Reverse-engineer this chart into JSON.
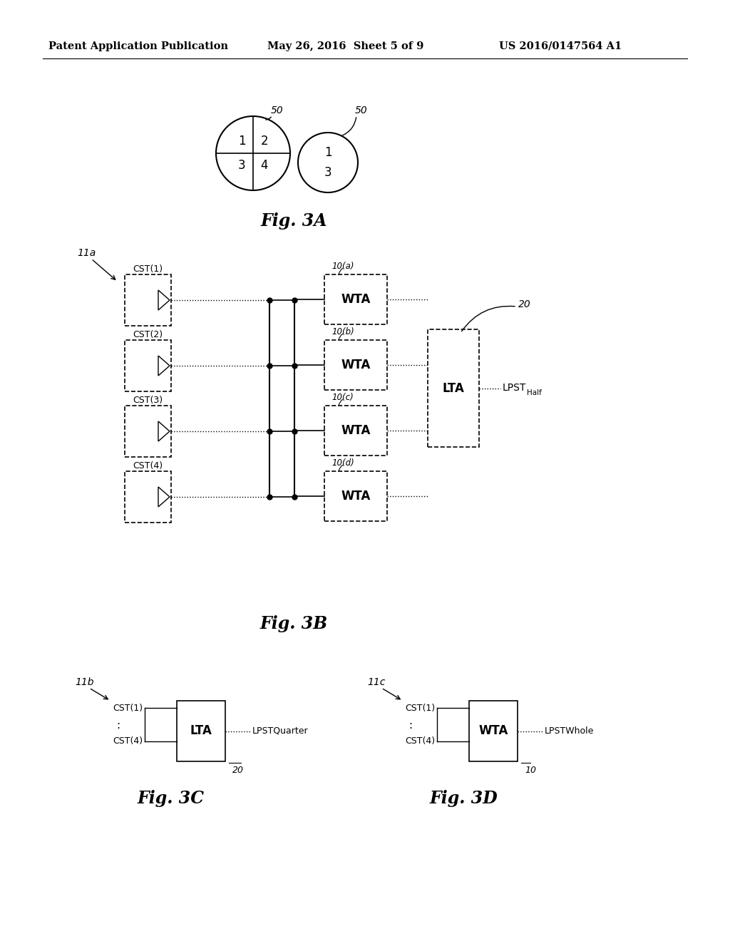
{
  "background_color": "#ffffff",
  "header_left": "Patent Application Publication",
  "header_center": "May 26, 2016  Sheet 5 of 9",
  "header_right": "US 2016/0147564 A1",
  "fig3A_label": "Fig. 3A",
  "fig3B_label": "Fig. 3B",
  "fig3C_label": "Fig. 3C",
  "fig3D_label": "Fig. 3D",
  "circle1_label": "50",
  "circle2_label": "50",
  "ref_11a": "11a",
  "ref_11b": "11b",
  "ref_11c": "11c",
  "ref_20a": "20",
  "ref_20b": "20",
  "ref_10": "10",
  "wta_sublabels": [
    "10(a)",
    "10(b)",
    "10(c)",
    "10(d)"
  ],
  "cst_labels": [
    "CST(1)",
    "CST(2)",
    "CST(3)",
    "CST(4)"
  ],
  "fig3c_cst_top": "CST(1)",
  "fig3c_cst_bot": "CST(4)",
  "fig3c_box": "LTA",
  "fig3c_out": "LPSTQuarter",
  "fig3d_cst_top": "CST(1)",
  "fig3d_cst_bot": "CST(4)",
  "fig3d_box": "WTA",
  "fig3d_out": "LPSTWhole",
  "lpst_half_main": "LPST",
  "lpst_half_sub": "Half"
}
